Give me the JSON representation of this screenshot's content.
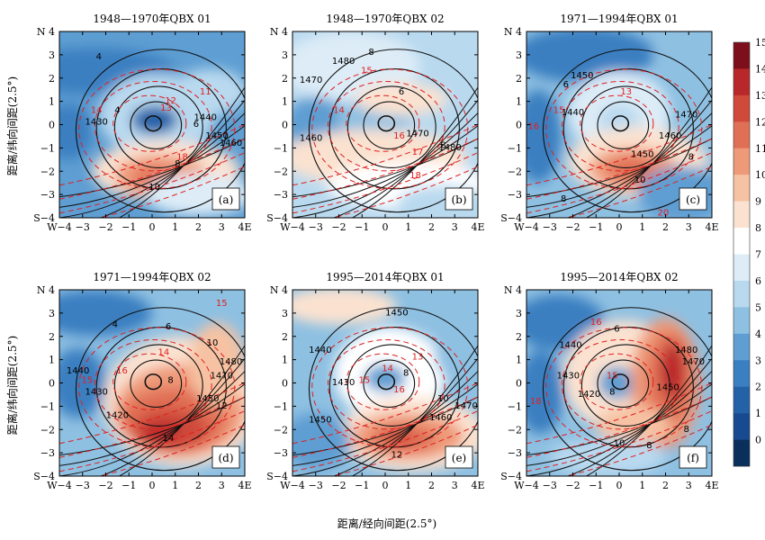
{
  "chart_data": {
    "type": "heatmap",
    "xlabel": "距离/经向间距(2.5°)",
    "ylabel": "距离/纬向间距(2.5°)",
    "xlim": [
      -4,
      4
    ],
    "ylim": [
      -4,
      4
    ],
    "x_tick_labels": [
      "W−4",
      "−3",
      "−2",
      "−1",
      "0",
      "1",
      "2",
      "3",
      "4E"
    ],
    "y_tick_labels": [
      "N 4",
      "3",
      "2",
      "1",
      "0",
      "−1",
      "−2",
      "−3",
      "S−4"
    ],
    "colorbar": {
      "labels": [
        "0",
        "1",
        "2",
        "3",
        "4",
        "5",
        "6",
        "7",
        "8",
        "9",
        "10",
        "11",
        "12",
        "13",
        "14",
        "15"
      ],
      "colors": [
        "#0a2f5c",
        "#174a90",
        "#2462a8",
        "#3a7fc1",
        "#5e9ed2",
        "#8ec0e2",
        "#b9d9ef",
        "#ddecf7",
        "#ffffff",
        "#fbe2d0",
        "#f6c2a3",
        "#ee9a79",
        "#e07055",
        "#cf4a3a",
        "#b8272a",
        "#7d0f1c"
      ]
    },
    "panels": [
      {
        "title": "1948—1970年QBX 01",
        "label": "(a)",
        "black_labels": [
          {
            "t": "4",
            "x": -2.3,
            "y": 2.8
          },
          {
            "t": "6",
            "x": 1.9,
            "y": -0.1
          },
          {
            "t": "8",
            "x": 1.1,
            "y": -1.8
          },
          {
            "t": "10",
            "x": 0.1,
            "y": -2.8
          },
          {
            "t": "4",
            "x": -1.5,
            "y": 0.5
          },
          {
            "t": "1440",
            "x": 2.3,
            "y": 0.2
          },
          {
            "t": "1450",
            "x": 2.8,
            "y": -0.6
          },
          {
            "t": "1460",
            "x": 3.4,
            "y": -0.9
          },
          {
            "t": "1430",
            "x": -2.4,
            "y": 0.0
          }
        ],
        "red_labels": [
          {
            "t": "11",
            "x": 2.3,
            "y": 1.3
          },
          {
            "t": "12",
            "x": 0.8,
            "y": 0.9
          },
          {
            "t": "13",
            "x": 0.6,
            "y": 0.6
          },
          {
            "t": "14",
            "x": -2.4,
            "y": 0.5
          },
          {
            "t": "18",
            "x": 1.3,
            "y": -1.5
          }
        ]
      },
      {
        "title": "1948—1970年QBX 02",
        "label": "(b)",
        "black_labels": [
          {
            "t": "8",
            "x": -0.6,
            "y": 3.0
          },
          {
            "t": "6",
            "x": 0.7,
            "y": 1.3
          },
          {
            "t": "1470",
            "x": -3.2,
            "y": 1.8
          },
          {
            "t": "1480",
            "x": -1.8,
            "y": 2.6
          },
          {
            "t": "1470",
            "x": 1.4,
            "y": -0.5
          },
          {
            "t": "1460",
            "x": -3.2,
            "y": -0.7
          },
          {
            "t": "8",
            "x": 2.5,
            "y": -1.0
          },
          {
            "t": "1480",
            "x": 2.8,
            "y": -1.1
          }
        ],
        "red_labels": [
          {
            "t": "14",
            "x": -2.0,
            "y": 0.5
          },
          {
            "t": "15",
            "x": -0.8,
            "y": 2.2
          },
          {
            "t": "16",
            "x": 0.6,
            "y": -0.6
          },
          {
            "t": "17",
            "x": 1.4,
            "y": -1.3
          },
          {
            "t": "18",
            "x": 1.3,
            "y": -2.3
          }
        ]
      },
      {
        "title": "1971—1994年QBX 01",
        "label": "(c)",
        "black_labels": [
          {
            "t": "6",
            "x": -2.3,
            "y": 1.6
          },
          {
            "t": "1450",
            "x": -1.6,
            "y": 2.0
          },
          {
            "t": "1440",
            "x": -2.0,
            "y": 0.4
          },
          {
            "t": "1460",
            "x": 2.2,
            "y": -0.6
          },
          {
            "t": "1470",
            "x": 2.9,
            "y": 0.3
          },
          {
            "t": "1450",
            "x": 1.0,
            "y": -1.4
          },
          {
            "t": "10",
            "x": 0.9,
            "y": -2.5
          },
          {
            "t": "8",
            "x": -2.4,
            "y": -3.3
          },
          {
            "t": "8",
            "x": 3.1,
            "y": -1.5
          }
        ],
        "red_labels": [
          {
            "t": "13",
            "x": 0.3,
            "y": 1.3
          },
          {
            "t": "15",
            "x": -2.6,
            "y": 0.5
          },
          {
            "t": "16",
            "x": -3.7,
            "y": -0.2
          },
          {
            "t": "20",
            "x": 1.9,
            "y": -3.9
          }
        ]
      },
      {
        "title": "1971—1994年QBX 02",
        "label": "(d)",
        "black_labels": [
          {
            "t": "4",
            "x": -1.6,
            "y": 2.4
          },
          {
            "t": "6",
            "x": 0.7,
            "y": 2.3
          },
          {
            "t": "10",
            "x": 2.6,
            "y": 1.6
          },
          {
            "t": "8",
            "x": 0.8,
            "y": 0.0
          },
          {
            "t": "12",
            "x": 3.0,
            "y": -1.1
          },
          {
            "t": "14",
            "x": 0.7,
            "y": -2.5
          },
          {
            "t": "1440",
            "x": -3.2,
            "y": 0.4
          },
          {
            "t": "1430",
            "x": -2.4,
            "y": -0.5
          },
          {
            "t": "1420",
            "x": -1.5,
            "y": -1.5
          },
          {
            "t": "1480",
            "x": 3.4,
            "y": 0.8
          },
          {
            "t": "1470",
            "x": 3.0,
            "y": 0.2
          },
          {
            "t": "1450",
            "x": 2.4,
            "y": -0.8
          }
        ],
        "red_labels": [
          {
            "t": "15",
            "x": 3.0,
            "y": 3.3
          },
          {
            "t": "14",
            "x": 0.5,
            "y": 1.2
          },
          {
            "t": "16",
            "x": -1.3,
            "y": 0.4
          },
          {
            "t": "15",
            "x": -2.8,
            "y": 0.0
          }
        ]
      },
      {
        "title": "1995—2014年QBX 01",
        "label": "(e)",
        "black_labels": [
          {
            "t": "1450",
            "x": 0.5,
            "y": 2.9
          },
          {
            "t": "1440",
            "x": -2.8,
            "y": 1.3
          },
          {
            "t": "1430",
            "x": -1.8,
            "y": -0.1
          },
          {
            "t": "1450",
            "x": -2.8,
            "y": -1.7
          },
          {
            "t": "8",
            "x": 0.9,
            "y": 0.3
          },
          {
            "t": "10",
            "x": 2.5,
            "y": -0.8
          },
          {
            "t": "12",
            "x": 0.5,
            "y": -3.2
          },
          {
            "t": "1460",
            "x": 2.4,
            "y": -1.6
          },
          {
            "t": "1470",
            "x": 3.5,
            "y": -1.1
          }
        ],
        "red_labels": [
          {
            "t": "14",
            "x": 0.1,
            "y": 0.5
          },
          {
            "t": "15",
            "x": -0.9,
            "y": 0.0
          },
          {
            "t": "16",
            "x": 0.6,
            "y": -0.4
          },
          {
            "t": "13",
            "x": 1.4,
            "y": 1.0
          }
        ]
      },
      {
        "title": "1995—2014年QBX 02",
        "label": "(f)",
        "black_labels": [
          {
            "t": "6",
            "x": -0.1,
            "y": 2.2
          },
          {
            "t": "1480",
            "x": 2.9,
            "y": 1.3
          },
          {
            "t": "1470",
            "x": 3.2,
            "y": 0.8
          },
          {
            "t": "1440",
            "x": -2.1,
            "y": 1.5
          },
          {
            "t": "1430",
            "x": -2.2,
            "y": 0.2
          },
          {
            "t": "1420",
            "x": -1.3,
            "y": -0.6
          },
          {
            "t": "8",
            "x": -0.3,
            "y": -0.5
          },
          {
            "t": "1450",
            "x": 2.1,
            "y": -0.3
          },
          {
            "t": "10",
            "x": 0.0,
            "y": -2.7
          },
          {
            "t": "8",
            "x": 1.3,
            "y": -2.8
          },
          {
            "t": "8",
            "x": 2.9,
            "y": -2.1
          }
        ],
        "red_labels": [
          {
            "t": "16",
            "x": -1.0,
            "y": 2.5
          },
          {
            "t": "15",
            "x": -0.3,
            "y": 0.2
          },
          {
            "t": "18",
            "x": -3.6,
            "y": -0.9
          }
        ]
      }
    ]
  }
}
